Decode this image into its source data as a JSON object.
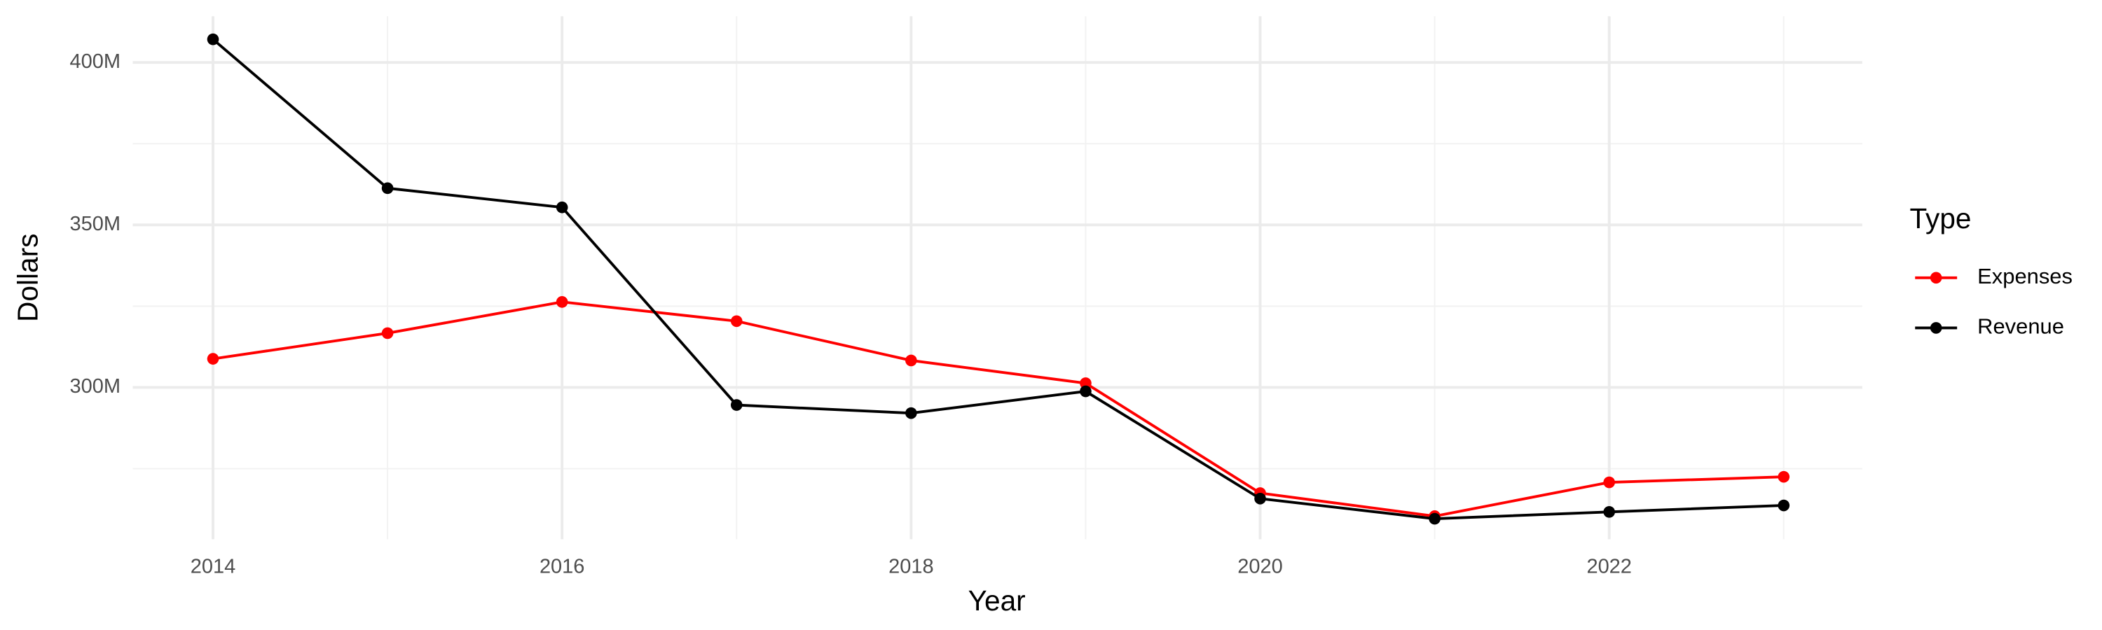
{
  "chart_data": {
    "type": "line",
    "x_label": "Year",
    "y_label": "Dollars",
    "legend_title": "Type",
    "legend": "right",
    "grid": true,
    "x": [
      2014,
      2015,
      2016,
      2017,
      2018,
      2019,
      2020,
      2021,
      2022,
      2023
    ],
    "series": [
      {
        "name": "Expenses",
        "color": "#ff0000",
        "values": [
          308800000,
          316700000,
          326300000,
          320400000,
          308300000,
          301300000,
          267500000,
          260400000,
          270800000,
          272500000
        ]
      },
      {
        "name": "Revenue",
        "color": "#000000",
        "values": [
          407100000,
          361300000,
          355400000,
          294600000,
          292100000,
          298800000,
          265800000,
          259600000,
          261700000,
          263700000
        ]
      }
    ],
    "xlim": [
      2013.54,
      2023.45
    ],
    "xticks": [
      2014,
      2016,
      2018,
      2020,
      2022
    ],
    "minor_xticks": [
      2015,
      2017,
      2019,
      2021,
      2023
    ],
    "ylim": [
      253300000,
      414200000
    ],
    "yticks": [
      {
        "value": 300000000,
        "label": "300M"
      },
      {
        "value": 350000000,
        "label": "350M"
      },
      {
        "value": 400000000,
        "label": "400M"
      }
    ],
    "minor_yticks": [
      275000000,
      325000000,
      375000000
    ]
  }
}
